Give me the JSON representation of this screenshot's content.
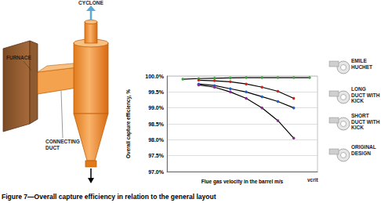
{
  "chart_data": {
    "type": "line",
    "x_label": "Flue gas velocity in the barrel m/s",
    "y_label": "Overall capture efficiency, %",
    "x": [
      1,
      2,
      3,
      4,
      5,
      6,
      7,
      8,
      9
    ],
    "series": [
      {
        "name": "EMILE HUCHET",
        "color": "#000000",
        "values": [
          99.9,
          99.92,
          99.93,
          99.94,
          99.95,
          99.95,
          99.95,
          99.95,
          99.95
        ]
      },
      {
        "name": "LONG DUCT WITH KICK",
        "color": "#000000",
        "values": [
          null,
          99.87,
          99.85,
          99.82,
          99.75,
          99.65,
          99.52,
          99.3,
          null
        ]
      },
      {
        "name": "SHORT DUCT WITH KICK",
        "color": "#000000",
        "values": [
          null,
          99.75,
          99.7,
          99.6,
          99.5,
          99.35,
          99.2,
          99.0,
          null
        ]
      },
      {
        "name": "ORIGINAL DESIGN",
        "color": "#000000",
        "values": [
          null,
          99.72,
          99.65,
          99.5,
          99.3,
          99.0,
          98.6,
          98.05,
          null
        ]
      }
    ],
    "xlim": [
      0,
      9.5
    ],
    "ylim": [
      97,
      100
    ],
    "yticks": [
      {
        "value": 97,
        "label": "97.0%"
      },
      {
        "value": 97.5,
        "label": "97.5%"
      },
      {
        "value": 98,
        "label": "98.0%"
      },
      {
        "value": 98.5,
        "label": "98.5%"
      },
      {
        "value": 99,
        "label": "99.0%"
      },
      {
        "value": 99.5,
        "label": "99.5%"
      },
      {
        "value": 100,
        "label": "100.0%"
      }
    ],
    "grid": true,
    "tick_labels": "y",
    "marker": "circle",
    "annotations": [
      "vcrit"
    ]
  },
  "diagram": {
    "labels": [
      "FURNACE",
      "CYCLONE",
      "CONNECTING DUCT"
    ]
  },
  "caption": "Figure 7—Overall capture efficiency in relation to the general layout"
}
